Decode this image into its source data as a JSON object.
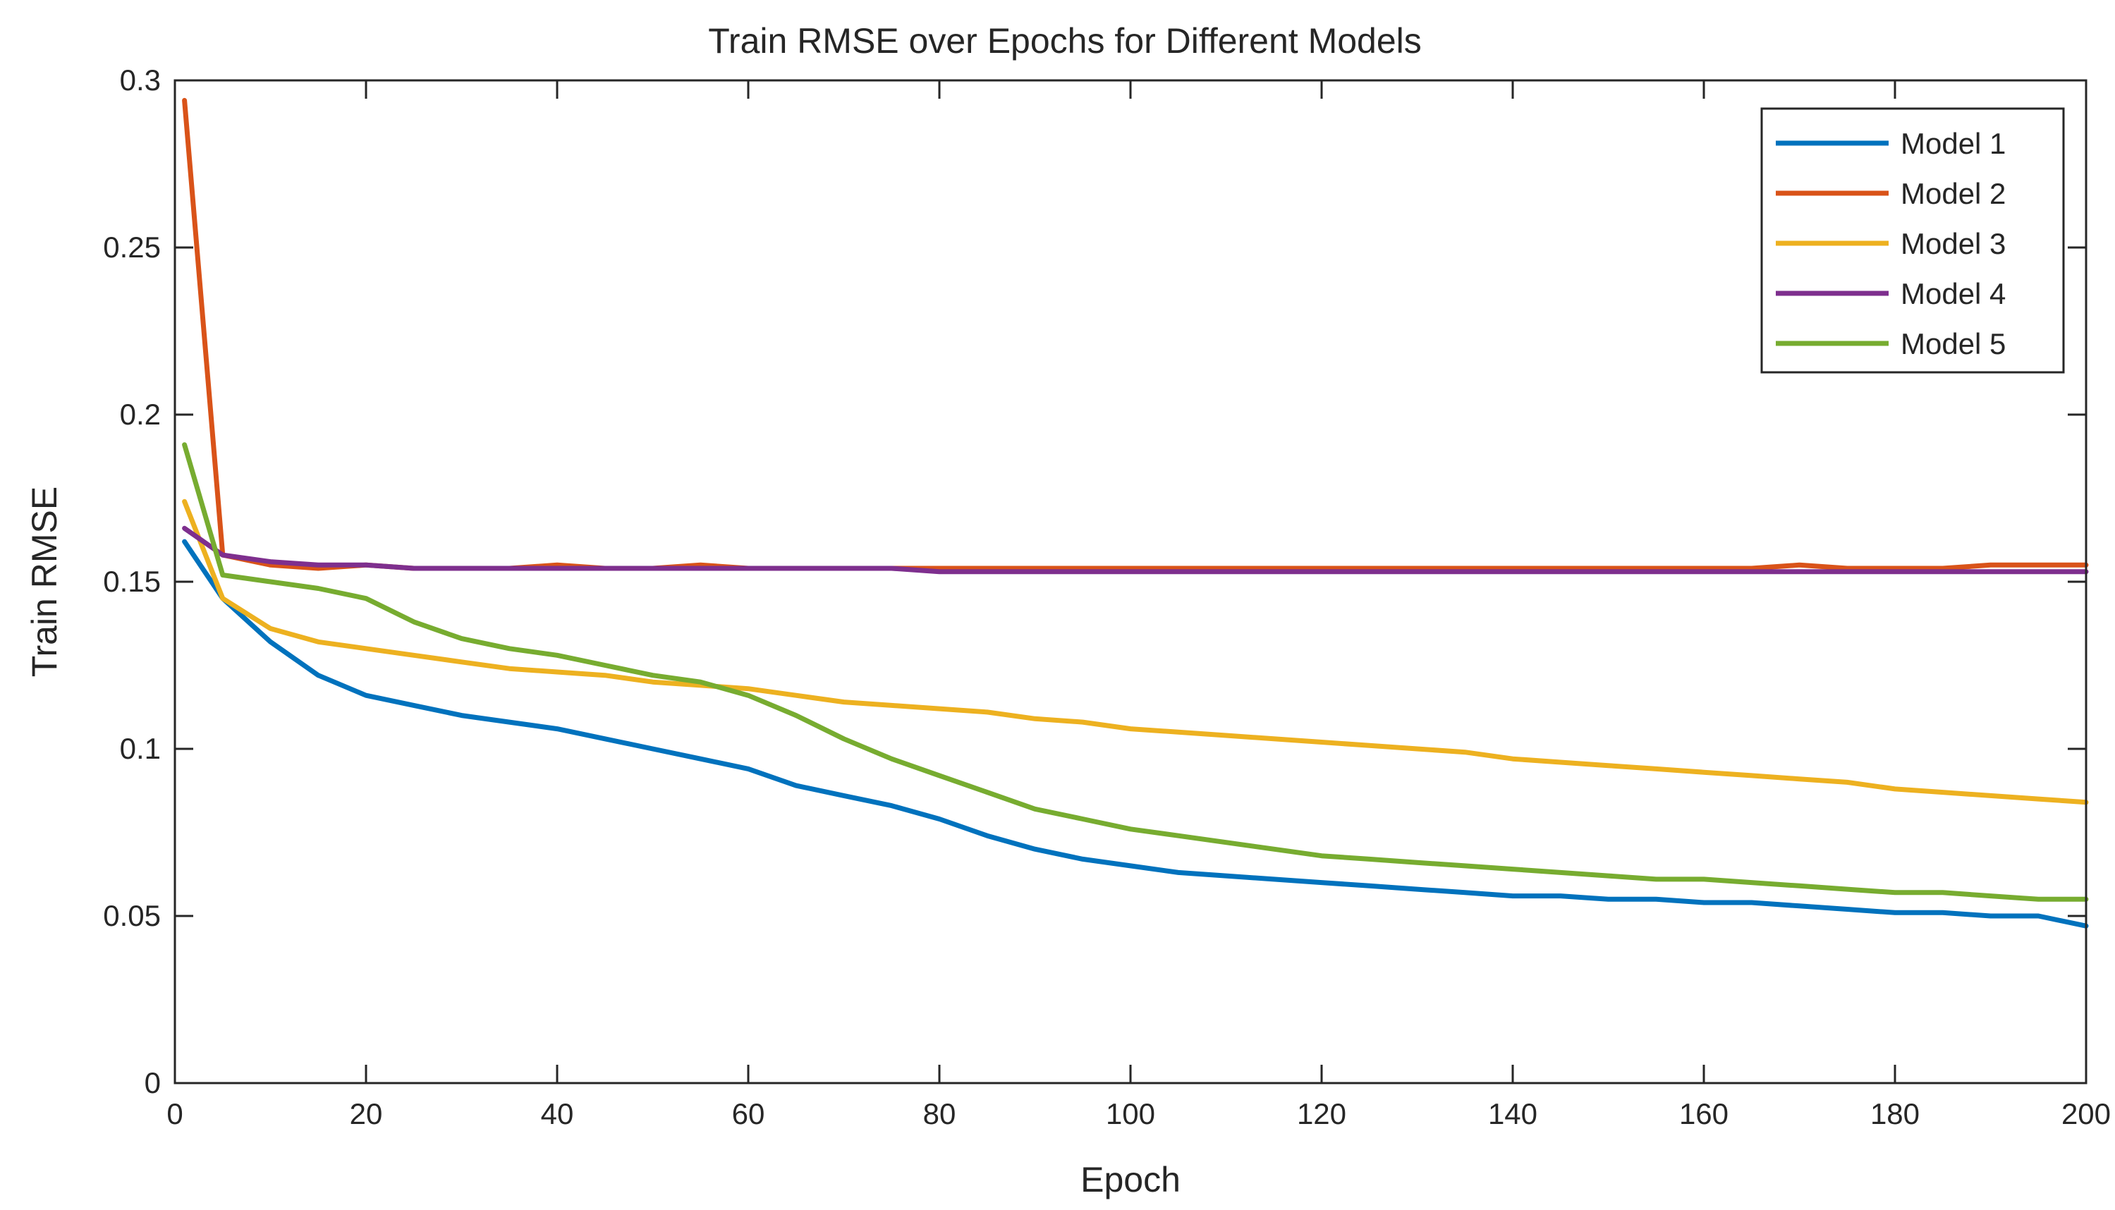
{
  "chart_data": {
    "type": "line",
    "title": "Train RMSE over Epochs for Different Models",
    "xlabel": "Epoch",
    "ylabel": "Train RMSE",
    "xlim": [
      0,
      200
    ],
    "ylim": [
      0,
      0.3
    ],
    "x_ticks": [
      "0",
      "20",
      "40",
      "60",
      "80",
      "100",
      "120",
      "140",
      "160",
      "180",
      "200"
    ],
    "y_ticks": [
      "0",
      "0.05",
      "0.1",
      "0.15",
      "0.2",
      "0.25",
      "0.3"
    ],
    "grid": false,
    "legend_position": "top-right",
    "x": [
      1,
      5,
      10,
      15,
      20,
      25,
      30,
      35,
      40,
      45,
      50,
      55,
      60,
      65,
      70,
      75,
      80,
      85,
      90,
      95,
      100,
      105,
      110,
      115,
      120,
      125,
      130,
      135,
      140,
      145,
      150,
      155,
      160,
      165,
      170,
      175,
      180,
      185,
      190,
      195,
      200
    ],
    "series": [
      {
        "name": "Model 1",
        "color": "#0072BD",
        "values": [
          0.162,
          0.145,
          0.132,
          0.122,
          0.116,
          0.113,
          0.11,
          0.108,
          0.106,
          0.103,
          0.1,
          0.097,
          0.094,
          0.089,
          0.086,
          0.083,
          0.079,
          0.074,
          0.07,
          0.067,
          0.065,
          0.063,
          0.062,
          0.061,
          0.06,
          0.059,
          0.058,
          0.057,
          0.056,
          0.056,
          0.055,
          0.055,
          0.054,
          0.054,
          0.053,
          0.052,
          0.051,
          0.051,
          0.05,
          0.05,
          0.047
        ]
      },
      {
        "name": "Model 2",
        "color": "#D95319",
        "values": [
          0.294,
          0.158,
          0.155,
          0.154,
          0.155,
          0.154,
          0.154,
          0.154,
          0.155,
          0.154,
          0.154,
          0.155,
          0.154,
          0.154,
          0.154,
          0.154,
          0.154,
          0.154,
          0.154,
          0.154,
          0.154,
          0.154,
          0.154,
          0.154,
          0.154,
          0.154,
          0.154,
          0.154,
          0.154,
          0.154,
          0.154,
          0.154,
          0.154,
          0.154,
          0.155,
          0.154,
          0.154,
          0.154,
          0.155,
          0.155,
          0.155
        ]
      },
      {
        "name": "Model 3",
        "color": "#EDB120",
        "values": [
          0.174,
          0.145,
          0.136,
          0.132,
          0.13,
          0.128,
          0.126,
          0.124,
          0.123,
          0.122,
          0.12,
          0.119,
          0.118,
          0.116,
          0.114,
          0.113,
          0.112,
          0.111,
          0.109,
          0.108,
          0.106,
          0.105,
          0.104,
          0.103,
          0.102,
          0.101,
          0.1,
          0.099,
          0.097,
          0.096,
          0.095,
          0.094,
          0.093,
          0.092,
          0.091,
          0.09,
          0.088,
          0.087,
          0.086,
          0.085,
          0.084
        ]
      },
      {
        "name": "Model 4",
        "color": "#7E2F8E",
        "values": [
          0.166,
          0.158,
          0.156,
          0.155,
          0.155,
          0.154,
          0.154,
          0.154,
          0.154,
          0.154,
          0.154,
          0.154,
          0.154,
          0.154,
          0.154,
          0.154,
          0.153,
          0.153,
          0.153,
          0.153,
          0.153,
          0.153,
          0.153,
          0.153,
          0.153,
          0.153,
          0.153,
          0.153,
          0.153,
          0.153,
          0.153,
          0.153,
          0.153,
          0.153,
          0.153,
          0.153,
          0.153,
          0.153,
          0.153,
          0.153,
          0.153
        ]
      },
      {
        "name": "Model 5",
        "color": "#77AC30",
        "values": [
          0.191,
          0.152,
          0.15,
          0.148,
          0.145,
          0.138,
          0.133,
          0.13,
          0.128,
          0.125,
          0.122,
          0.12,
          0.116,
          0.11,
          0.103,
          0.097,
          0.092,
          0.087,
          0.082,
          0.079,
          0.076,
          0.074,
          0.072,
          0.07,
          0.068,
          0.067,
          0.066,
          0.065,
          0.064,
          0.063,
          0.062,
          0.061,
          0.061,
          0.06,
          0.059,
          0.058,
          0.057,
          0.057,
          0.056,
          0.055,
          0.055
        ]
      }
    ]
  }
}
